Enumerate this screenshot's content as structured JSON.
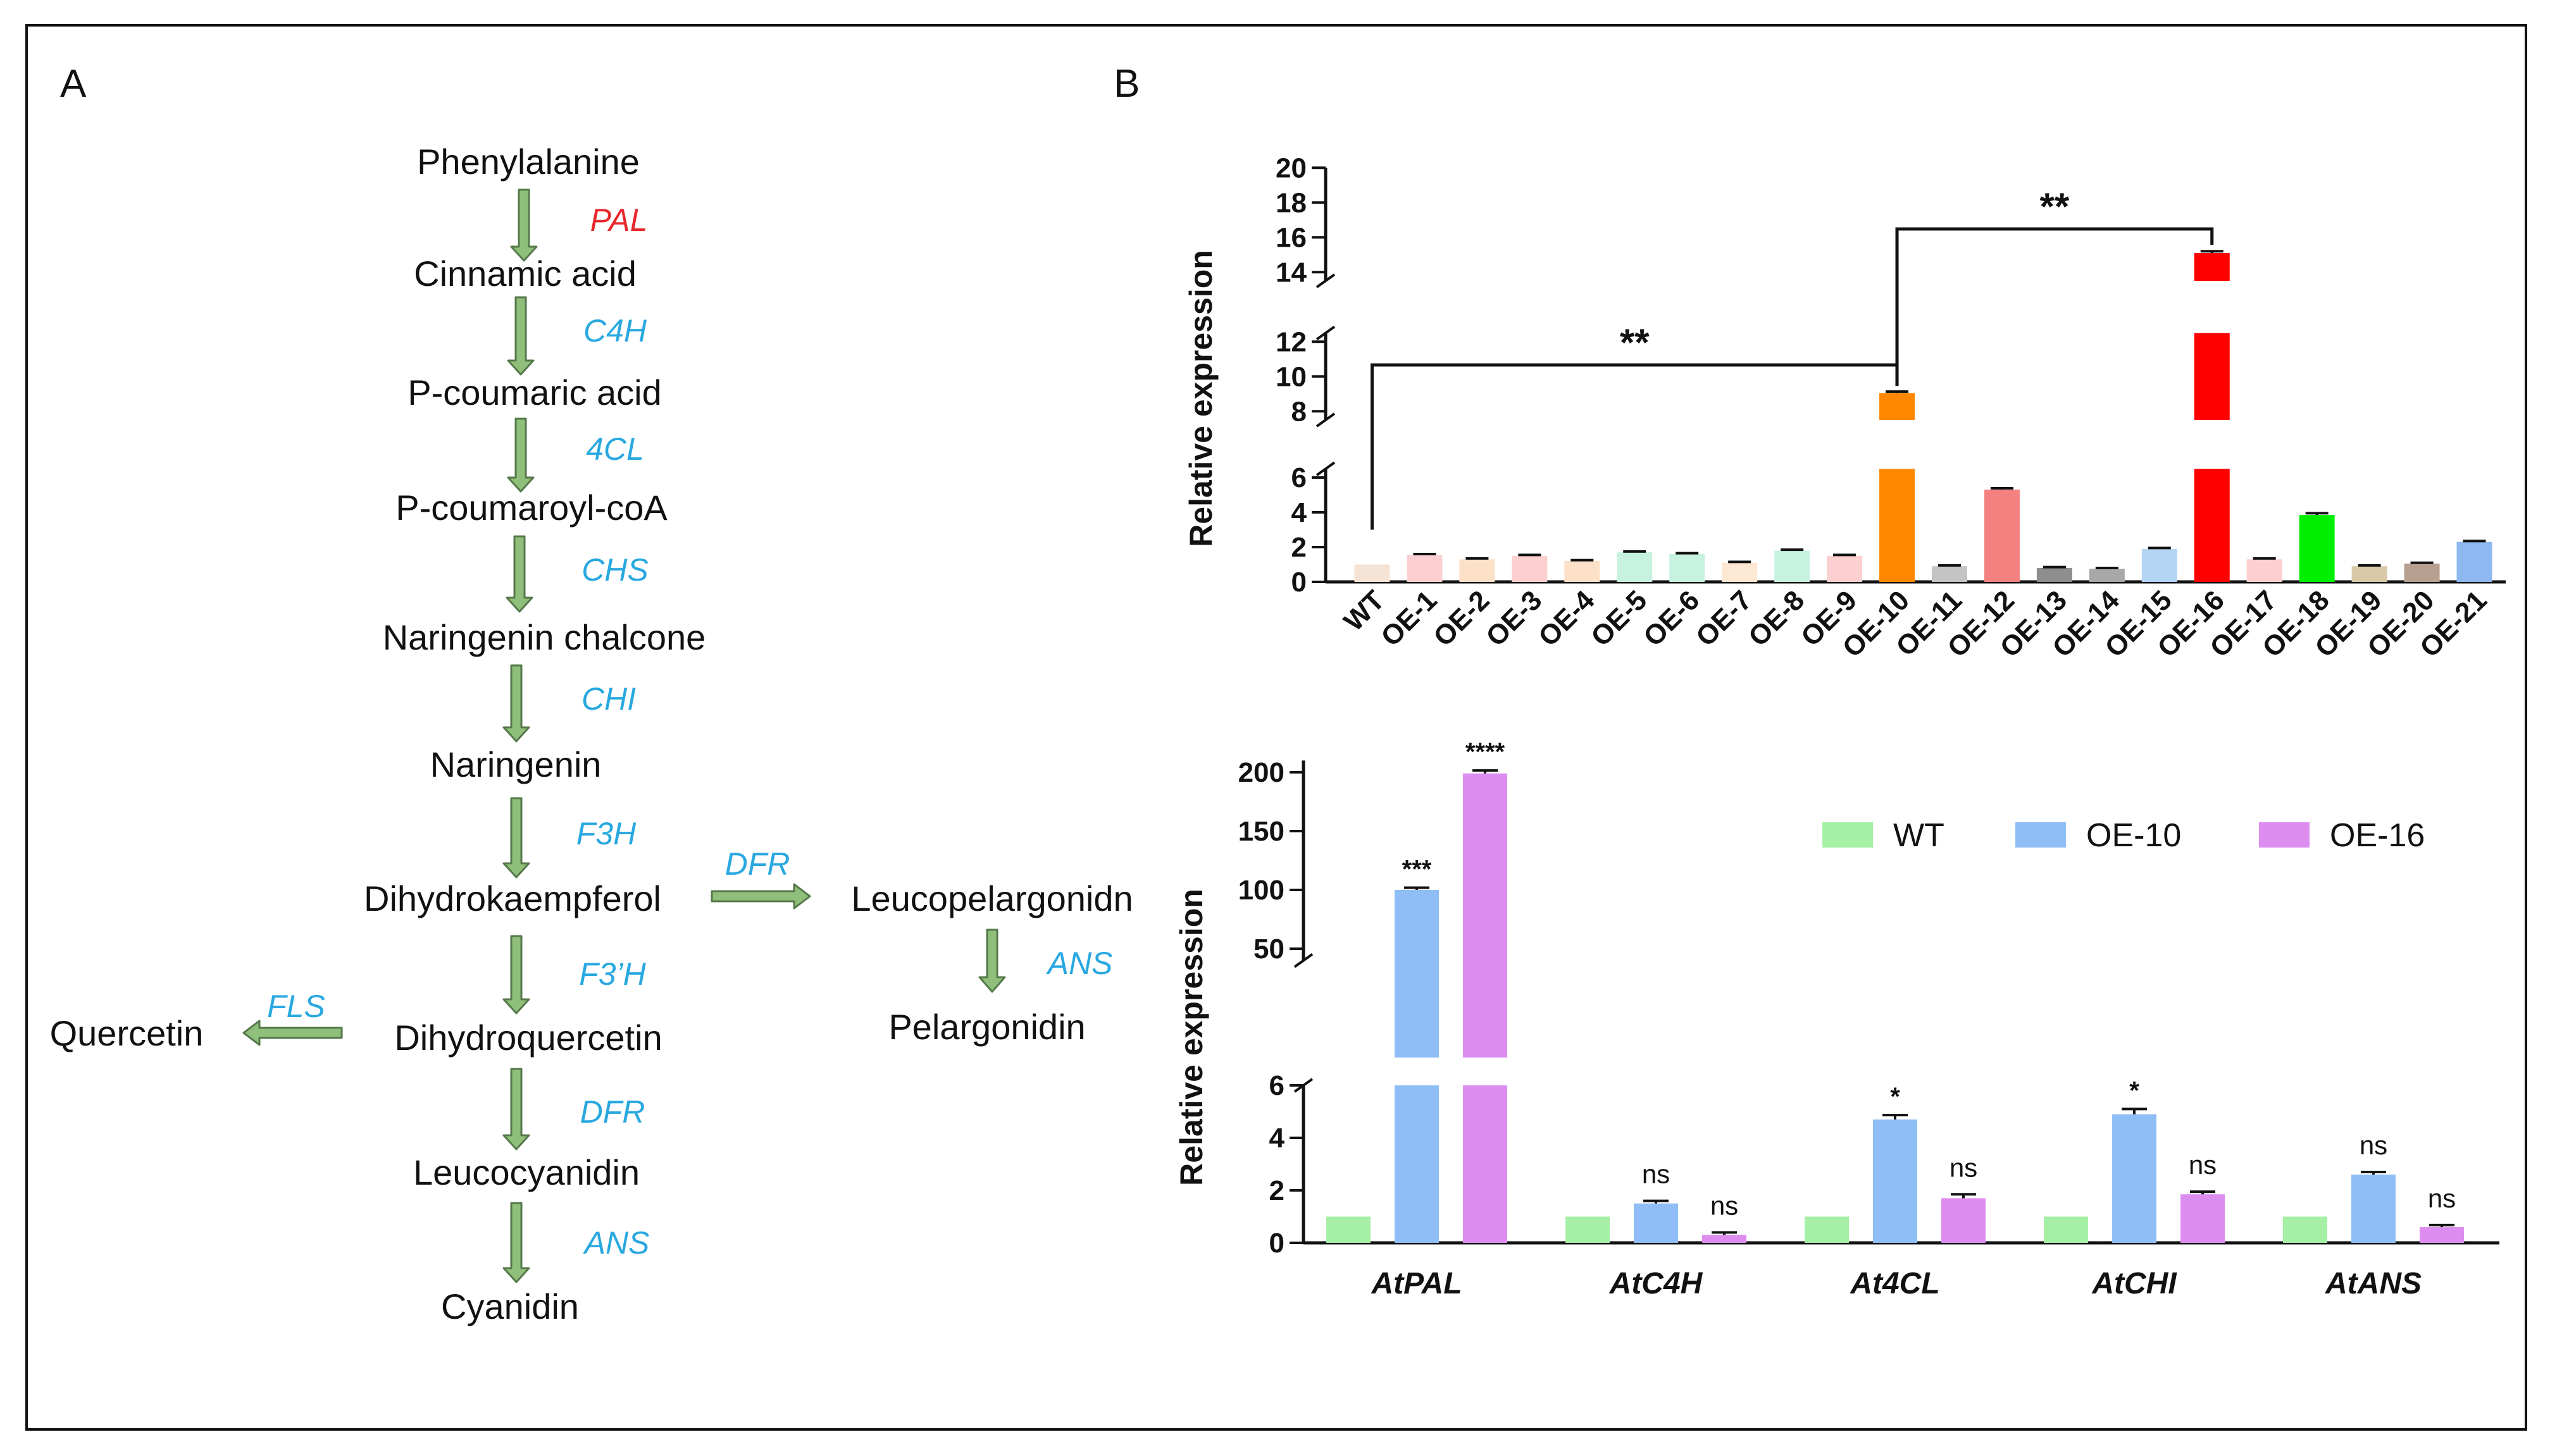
{
  "panel_a": {
    "label": "A",
    "compounds": {
      "phenylalanine": "Phenylalanine",
      "cinnamic": "Cinnamic acid",
      "pcoumaric": "P-coumaric acid",
      "pcoumaroyl": "P-coumaroyl-coA",
      "chalcone": "Naringenin chalcone",
      "naringenin": "Naringenin",
      "dihydrokaempferol": "Dihydrokaempferol",
      "leucopelargonidn": "Leucopelargonidn",
      "pelargonidin": "Pelargonidin",
      "quercetin": "Quercetin",
      "dihydroquercetin": "Dihydroquercetin",
      "leucocyanidin": "Leucocyanidin",
      "cyanidin": "Cyanidin"
    },
    "enzymes": {
      "pal": "PAL",
      "c4h": "C4H",
      "fourcl": "4CL",
      "chs": "CHS",
      "chi": "CHI",
      "f3h": "F3H",
      "dfr1": "DFR",
      "ans1": "ANS",
      "f3ph": "F3’H",
      "fls": "FLS",
      "dfr2": "DFR",
      "ans2": "ANS"
    },
    "colors": {
      "highlight_enzyme": "#e8262b",
      "enzyme": "#29a8e0",
      "arrow_fill": "#8fbf7a",
      "arrow_stroke": "#55794a"
    }
  },
  "panel_b": {
    "label": "B"
  },
  "chart_data": [
    {
      "type": "bar",
      "ylabel": "Relative expression",
      "xlabel": "",
      "categories": [
        "WT",
        "OE-1",
        "OE-2",
        "OE-3",
        "OE-4",
        "OE-5",
        "OE-6",
        "OE-7",
        "OE-8",
        "OE-9",
        "OE-10",
        "OE-11",
        "OE-12",
        "OE-13",
        "OE-14",
        "OE-15",
        "OE-16",
        "OE-17",
        "OE-18",
        "OE-19",
        "OE-20",
        "OE-21"
      ],
      "values": [
        1.0,
        1.55,
        1.3,
        1.5,
        1.2,
        1.7,
        1.6,
        1.1,
        1.8,
        1.5,
        9.05,
        0.9,
        5.3,
        0.8,
        0.75,
        1.9,
        15.1,
        1.3,
        3.85,
        0.9,
        1.05,
        2.3
      ],
      "errors": [
        0,
        0.05,
        0.05,
        0.05,
        0.05,
        0.05,
        0.05,
        0.05,
        0.05,
        0.05,
        0.08,
        0.05,
        0.08,
        0.05,
        0.05,
        0.05,
        0.1,
        0.05,
        0.1,
        0.05,
        0.05,
        0.05
      ],
      "colors": [
        "#f5e3d5",
        "#fcd0d0",
        "#fde0c8",
        "#fcd0d0",
        "#fde0c8",
        "#c8f2e0",
        "#c8f2e0",
        "#fde8d4",
        "#c8f2e0",
        "#fcd0d0",
        "#ff8800",
        "#c4c4c4",
        "#f58080",
        "#8e8e8e",
        "#a8a8a8",
        "#b4d4f4",
        "#ff0000",
        "#fcd0d0",
        "#00ee00",
        "#d8c8a8",
        "#b8a090",
        "#8eb8f0"
      ],
      "y_ticks": [
        0,
        2,
        4,
        6,
        8,
        10,
        12,
        14,
        16,
        18,
        20
      ],
      "y_breaks": [
        [
          6.5,
          7.5
        ],
        [
          12.5,
          13.5
        ]
      ],
      "ylim": [
        0,
        20
      ],
      "significance": [
        {
          "from": "WT",
          "to": "OE-10",
          "label": "**"
        },
        {
          "from": "OE-10",
          "to": "OE-16",
          "label": "**"
        }
      ]
    },
    {
      "type": "bar",
      "ylabel": "Relative expression",
      "xlabel": "",
      "categories": [
        "AtPAL",
        "AtC4H",
        "At4CL",
        "AtCHI",
        "AtANS"
      ],
      "series": [
        {
          "name": "WT",
          "color": "#a5f0a5",
          "values": [
            1,
            1,
            1,
            1,
            1
          ],
          "errors": [
            0,
            0,
            0,
            0,
            0
          ],
          "labels": [
            "",
            "",
            "",
            "",
            ""
          ]
        },
        {
          "name": "OE-10",
          "color": "#8ebef5",
          "values": [
            100,
            1.5,
            4.7,
            4.9,
            2.6
          ],
          "errors": [
            0.8,
            0.05,
            0.12,
            0.15,
            0.05
          ],
          "labels": [
            "***",
            "ns",
            "*",
            "*",
            "ns"
          ]
        },
        {
          "name": "OE-16",
          "color": "#dd8df0",
          "values": [
            199,
            0.3,
            1.7,
            1.85,
            0.6
          ],
          "errors": [
            1.5,
            0.05,
            0.1,
            0.05,
            0.03
          ],
          "labels": [
            "****",
            "ns",
            "ns",
            "ns",
            "ns"
          ]
        }
      ],
      "y_ticks_lower": [
        0,
        2,
        4,
        6
      ],
      "y_ticks_upper": [
        50,
        100,
        150,
        200
      ],
      "y_break": [
        6,
        30
      ],
      "legend_position": "top-right"
    }
  ]
}
